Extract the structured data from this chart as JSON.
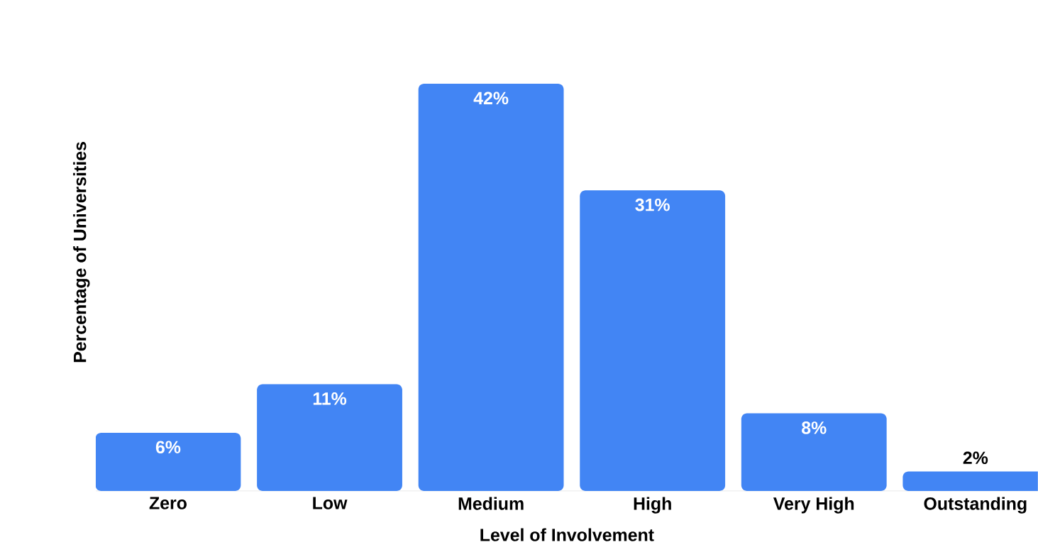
{
  "chart_data": {
    "type": "bar",
    "xlabel": "Level of Involvement",
    "ylabel": "Percentage of Universities",
    "categories": [
      "Zero",
      "Low",
      "Medium",
      "High",
      "Very High",
      "Outstanding"
    ],
    "values": [
      6,
      11,
      42,
      31,
      8,
      2
    ],
    "value_labels": [
      "6%",
      "11%",
      "42%",
      "31%",
      "8%",
      "2%"
    ],
    "color": "#4285f4"
  }
}
